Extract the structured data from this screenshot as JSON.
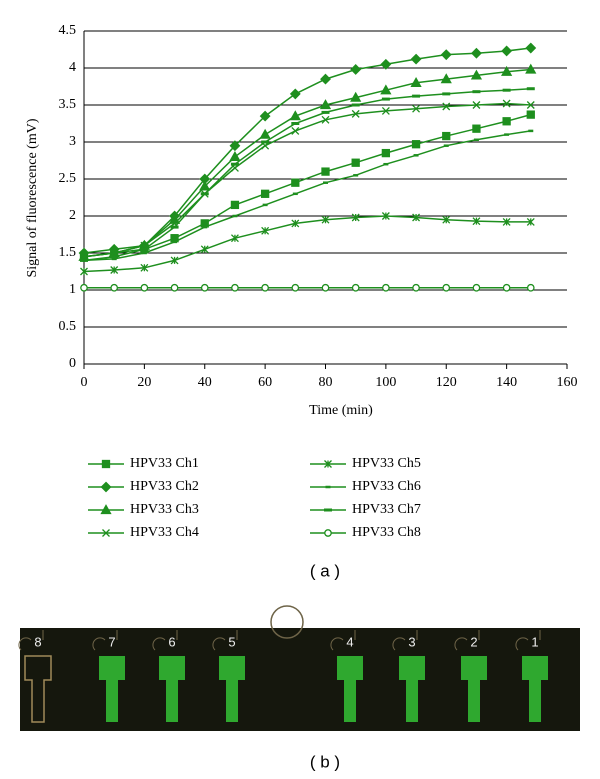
{
  "chart_data": {
    "type": "line",
    "x_label": "Time (min)",
    "y_label": "Signal of fluorescence (mV)",
    "x": [
      0,
      10,
      20,
      30,
      40,
      50,
      60,
      70,
      80,
      90,
      100,
      110,
      120,
      130,
      140,
      148
    ],
    "series": [
      {
        "name": "HPV33 Ch1",
        "marker": "square",
        "color": "#1e8f1e",
        "values": [
          1.45,
          1.5,
          1.55,
          1.7,
          1.9,
          2.15,
          2.3,
          2.45,
          2.6,
          2.72,
          2.85,
          2.97,
          3.08,
          3.18,
          3.28,
          3.37
        ]
      },
      {
        "name": "HPV33 Ch2",
        "marker": "diamond",
        "color": "#1e8f1e",
        "values": [
          1.5,
          1.55,
          1.6,
          2.0,
          2.5,
          2.95,
          3.35,
          3.65,
          3.85,
          3.98,
          4.05,
          4.12,
          4.18,
          4.2,
          4.23,
          4.27
        ]
      },
      {
        "name": "HPV33 Ch3",
        "marker": "triangle",
        "color": "#1e8f1e",
        "values": [
          1.45,
          1.5,
          1.6,
          1.95,
          2.4,
          2.8,
          3.1,
          3.35,
          3.5,
          3.6,
          3.7,
          3.8,
          3.85,
          3.9,
          3.95,
          3.98
        ]
      },
      {
        "name": "HPV33 Ch4",
        "marker": "x",
        "color": "#1e8f1e",
        "values": [
          1.45,
          1.5,
          1.6,
          1.9,
          2.3,
          2.65,
          2.95,
          3.15,
          3.3,
          3.38,
          3.42,
          3.45,
          3.48,
          3.5,
          3.52,
          3.5
        ]
      },
      {
        "name": "HPV33 Ch5",
        "marker": "star",
        "color": "#1e8f1e",
        "values": [
          1.25,
          1.27,
          1.3,
          1.4,
          1.55,
          1.7,
          1.8,
          1.9,
          1.95,
          1.98,
          2.0,
          1.98,
          1.95,
          1.93,
          1.92,
          1.92
        ]
      },
      {
        "name": "HPV33 Ch6",
        "marker": "dash-small",
        "color": "#1e8f1e",
        "values": [
          1.4,
          1.42,
          1.5,
          1.65,
          1.85,
          2.0,
          2.15,
          2.3,
          2.45,
          2.55,
          2.7,
          2.82,
          2.95,
          3.03,
          3.1,
          3.15
        ]
      },
      {
        "name": "HPV33 Ch7",
        "marker": "dash",
        "color": "#1e8f1e",
        "values": [
          1.4,
          1.45,
          1.55,
          1.85,
          2.3,
          2.7,
          3.0,
          3.25,
          3.4,
          3.5,
          3.58,
          3.62,
          3.65,
          3.68,
          3.7,
          3.72
        ]
      },
      {
        "name": "HPV33 Ch8",
        "marker": "circle",
        "color": "#1e8f1e",
        "values": [
          1.03,
          1.03,
          1.03,
          1.03,
          1.03,
          1.03,
          1.03,
          1.03,
          1.03,
          1.03,
          1.03,
          1.03,
          1.03,
          1.03,
          1.03,
          1.03
        ]
      }
    ],
    "xlim": [
      0,
      160
    ],
    "xticks": [
      0,
      20,
      40,
      60,
      80,
      100,
      120,
      140,
      160
    ],
    "ylim": [
      0,
      4.5
    ],
    "yticks": [
      0,
      0.5,
      1,
      1.5,
      2,
      2.5,
      3,
      3.5,
      4,
      4.5
    ],
    "grid": true
  },
  "captions": [
    "( a )",
    "( b )"
  ],
  "photo_labels": [
    "8",
    "7",
    "6",
    "5",
    "4",
    "3",
    "2",
    "1"
  ]
}
